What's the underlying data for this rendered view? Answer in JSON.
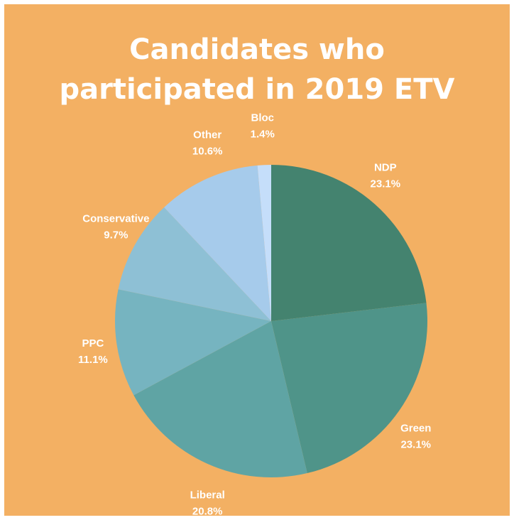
{
  "title_lines": [
    "Candidates who",
    "participated in 2019 ETV"
  ],
  "chart_data": {
    "type": "pie",
    "title": "Candidates who participated in 2019 ETV",
    "slices": [
      {
        "label": "NDP",
        "value": 23.1,
        "value_label": "23.1%",
        "color": "#44836f"
      },
      {
        "label": "Green",
        "value": 23.1,
        "value_label": "23.1%",
        "color": "#4f9489"
      },
      {
        "label": "Liberal",
        "value": 20.8,
        "value_label": "20.8%",
        "color": "#5fa4a4"
      },
      {
        "label": "PPC",
        "value": 11.1,
        "value_label": "11.1%",
        "color": "#76b4c0"
      },
      {
        "label": "Conservative",
        "value": 9.7,
        "value_label": "9.7%",
        "color": "#8ec0d5"
      },
      {
        "label": "Other",
        "value": 10.6,
        "value_label": "10.6%",
        "color": "#a6cbeb"
      },
      {
        "label": "Bloc",
        "value": 1.4,
        "value_label": "1.4%",
        "color": "#c5defa"
      }
    ]
  }
}
